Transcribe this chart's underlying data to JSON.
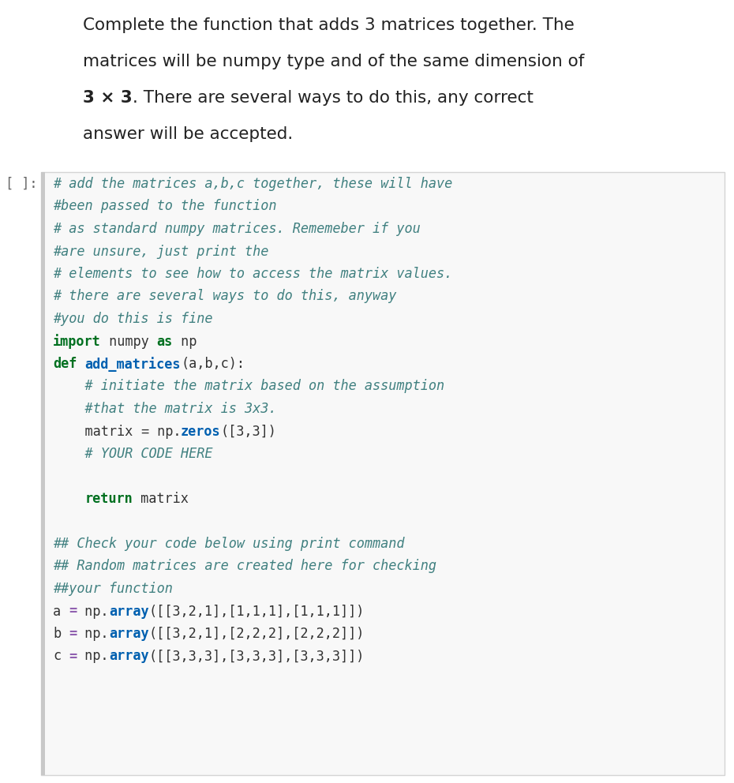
{
  "bg_color": "#ffffff",
  "cell_bg": "#f8f8f8",
  "cell_border": "#d4d4d4",
  "cell_label": "[ ]:",
  "cell_label_color": "#666666",
  "left_bar_color": "#c8c8c8",
  "desc_font_size": 15.5,
  "code_font_size": 12.2,
  "label_font_size": 12.2,
  "desc_lines": [
    {
      "text": "Complete the function that adds 3 matrices together. The",
      "bold_ranges": []
    },
    {
      "text": "matrices will be numpy type and of the same dimension of",
      "bold_ranges": []
    },
    {
      "text": "3 × 3. There are several ways to do this, any correct",
      "bold_ranges": [
        [
          0,
          5
        ]
      ]
    },
    {
      "text": "answer will be accepted.",
      "bold_ranges": []
    }
  ],
  "code_lines": [
    [
      {
        "t": "# add the matrices a,b,c together, these will have",
        "c": "#408080",
        "w": "normal",
        "s": "italic"
      }
    ],
    [
      {
        "t": "#been passed to the function",
        "c": "#408080",
        "w": "normal",
        "s": "italic"
      }
    ],
    [
      {
        "t": "# as standard numpy matrices. Rememeber if you",
        "c": "#408080",
        "w": "normal",
        "s": "italic"
      }
    ],
    [
      {
        "t": "#are unsure, just print the",
        "c": "#408080",
        "w": "normal",
        "s": "italic"
      }
    ],
    [
      {
        "t": "# elements to see how to access the matrix values.",
        "c": "#408080",
        "w": "normal",
        "s": "italic"
      }
    ],
    [
      {
        "t": "# there are several ways to do this, anyway",
        "c": "#408080",
        "w": "normal",
        "s": "italic"
      }
    ],
    [
      {
        "t": "#you do this is fine",
        "c": "#408080",
        "w": "normal",
        "s": "italic"
      }
    ],
    [
      {
        "t": "import",
        "c": "#007020",
        "w": "bold",
        "s": "normal"
      },
      {
        "t": " numpy ",
        "c": "#333333",
        "w": "normal",
        "s": "normal"
      },
      {
        "t": "as",
        "c": "#007020",
        "w": "bold",
        "s": "normal"
      },
      {
        "t": " np",
        "c": "#333333",
        "w": "normal",
        "s": "normal"
      }
    ],
    [
      {
        "t": "def",
        "c": "#007020",
        "w": "bold",
        "s": "normal"
      },
      {
        "t": " ",
        "c": "#333333",
        "w": "normal",
        "s": "normal"
      },
      {
        "t": "add_matrices",
        "c": "#0060B0",
        "w": "bold",
        "s": "normal"
      },
      {
        "t": "(a,b,c):",
        "c": "#333333",
        "w": "normal",
        "s": "normal"
      }
    ],
    [
      {
        "t": "    # initiate the matrix based on the assumption",
        "c": "#408080",
        "w": "normal",
        "s": "italic"
      }
    ],
    [
      {
        "t": "    #that the matrix is 3x3.",
        "c": "#408080",
        "w": "normal",
        "s": "italic"
      }
    ],
    [
      {
        "t": "    matrix ",
        "c": "#333333",
        "w": "normal",
        "s": "normal"
      },
      {
        "t": "=",
        "c": "#333333",
        "w": "normal",
        "s": "normal"
      },
      {
        "t": " np.",
        "c": "#333333",
        "w": "normal",
        "s": "normal"
      },
      {
        "t": "zeros",
        "c": "#0060B0",
        "w": "bold",
        "s": "normal"
      },
      {
        "t": "([3,3])",
        "c": "#333333",
        "w": "normal",
        "s": "normal"
      }
    ],
    [
      {
        "t": "    # YOUR CODE HERE",
        "c": "#408080",
        "w": "normal",
        "s": "italic"
      }
    ],
    [],
    [
      {
        "t": "    ",
        "c": "#333333",
        "w": "normal",
        "s": "normal"
      },
      {
        "t": "return",
        "c": "#007020",
        "w": "bold",
        "s": "normal"
      },
      {
        "t": " matrix",
        "c": "#333333",
        "w": "normal",
        "s": "normal"
      }
    ],
    [],
    [
      {
        "t": "## Check your code below using print command",
        "c": "#408080",
        "w": "normal",
        "s": "italic"
      }
    ],
    [
      {
        "t": "## Random matrices are created here for checking",
        "c": "#408080",
        "w": "normal",
        "s": "italic"
      }
    ],
    [
      {
        "t": "##your function",
        "c": "#408080",
        "w": "normal",
        "s": "italic"
      }
    ],
    [
      {
        "t": "a",
        "c": "#333333",
        "w": "normal",
        "s": "normal"
      },
      {
        "t": " ",
        "c": "#333333",
        "w": "normal",
        "s": "normal"
      },
      {
        "t": "=",
        "c": "#9060B0",
        "w": "bold",
        "s": "normal"
      },
      {
        "t": " np.",
        "c": "#333333",
        "w": "normal",
        "s": "normal"
      },
      {
        "t": "array",
        "c": "#0060B0",
        "w": "bold",
        "s": "normal"
      },
      {
        "t": "([[3,2,1],[1,1,1],[1,1,1]])",
        "c": "#333333",
        "w": "normal",
        "s": "normal"
      }
    ],
    [
      {
        "t": "b",
        "c": "#333333",
        "w": "normal",
        "s": "normal"
      },
      {
        "t": " ",
        "c": "#333333",
        "w": "normal",
        "s": "normal"
      },
      {
        "t": "=",
        "c": "#9060B0",
        "w": "bold",
        "s": "normal"
      },
      {
        "t": " np.",
        "c": "#333333",
        "w": "normal",
        "s": "normal"
      },
      {
        "t": "array",
        "c": "#0060B0",
        "w": "bold",
        "s": "normal"
      },
      {
        "t": "([[3,2,1],[2,2,2],[2,2,2]])",
        "c": "#333333",
        "w": "normal",
        "s": "normal"
      }
    ],
    [
      {
        "t": "c",
        "c": "#333333",
        "w": "normal",
        "s": "normal"
      },
      {
        "t": " ",
        "c": "#333333",
        "w": "normal",
        "s": "normal"
      },
      {
        "t": "=",
        "c": "#9060B0",
        "w": "bold",
        "s": "normal"
      },
      {
        "t": " np.",
        "c": "#333333",
        "w": "normal",
        "s": "normal"
      },
      {
        "t": "array",
        "c": "#0060B0",
        "w": "bold",
        "s": "normal"
      },
      {
        "t": "([[3,3,3],[3,3,3],[3,3,3]])",
        "c": "#333333",
        "w": "normal",
        "s": "normal"
      }
    ]
  ]
}
